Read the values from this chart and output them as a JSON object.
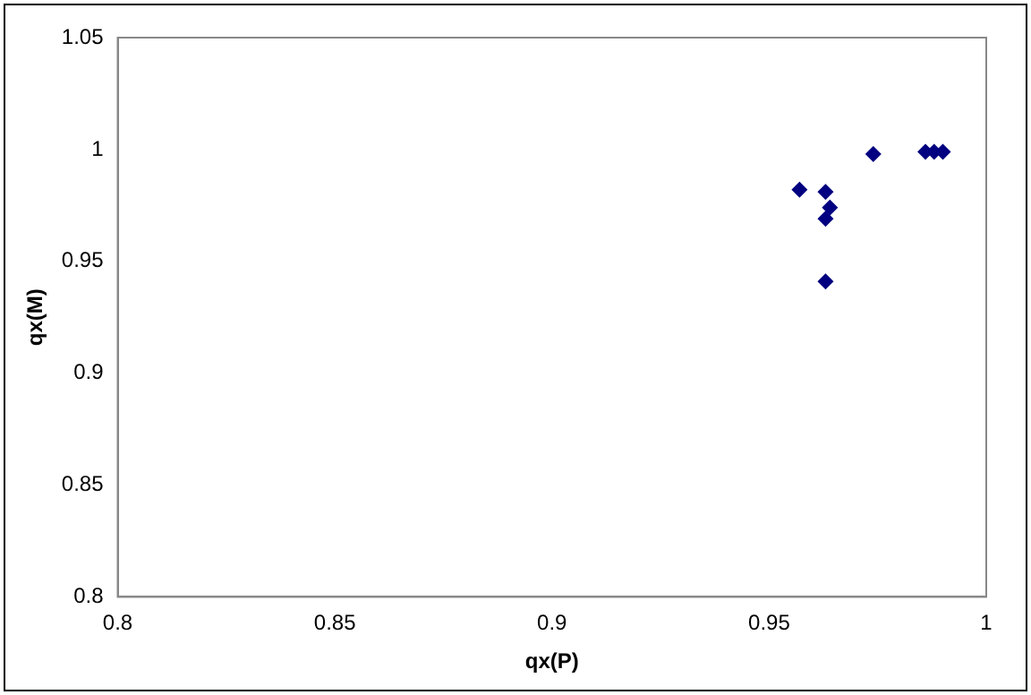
{
  "chart_data": {
    "type": "scatter",
    "xlabel": "qx(P)",
    "ylabel": "qx(M)",
    "marker": "diamond",
    "grid": false,
    "legend": false,
    "x": [
      0.957,
      0.963,
      0.963,
      0.964,
      0.963,
      0.974,
      0.986,
      0.988,
      0.99
    ],
    "series": [
      {
        "color": "#000080",
        "values": [
          0.982,
          0.941,
          0.981,
          0.974,
          0.969,
          0.998,
          0.999,
          0.999,
          0.999
        ]
      }
    ],
    "xlim": [
      0.8,
      1
    ],
    "xticks": [
      0.8,
      0.85,
      0.9,
      0.95,
      1
    ],
    "ylim": [
      0.8,
      1.05
    ],
    "yticks": [
      0.8,
      0.85,
      0.9,
      0.95,
      1,
      1.05
    ]
  }
}
